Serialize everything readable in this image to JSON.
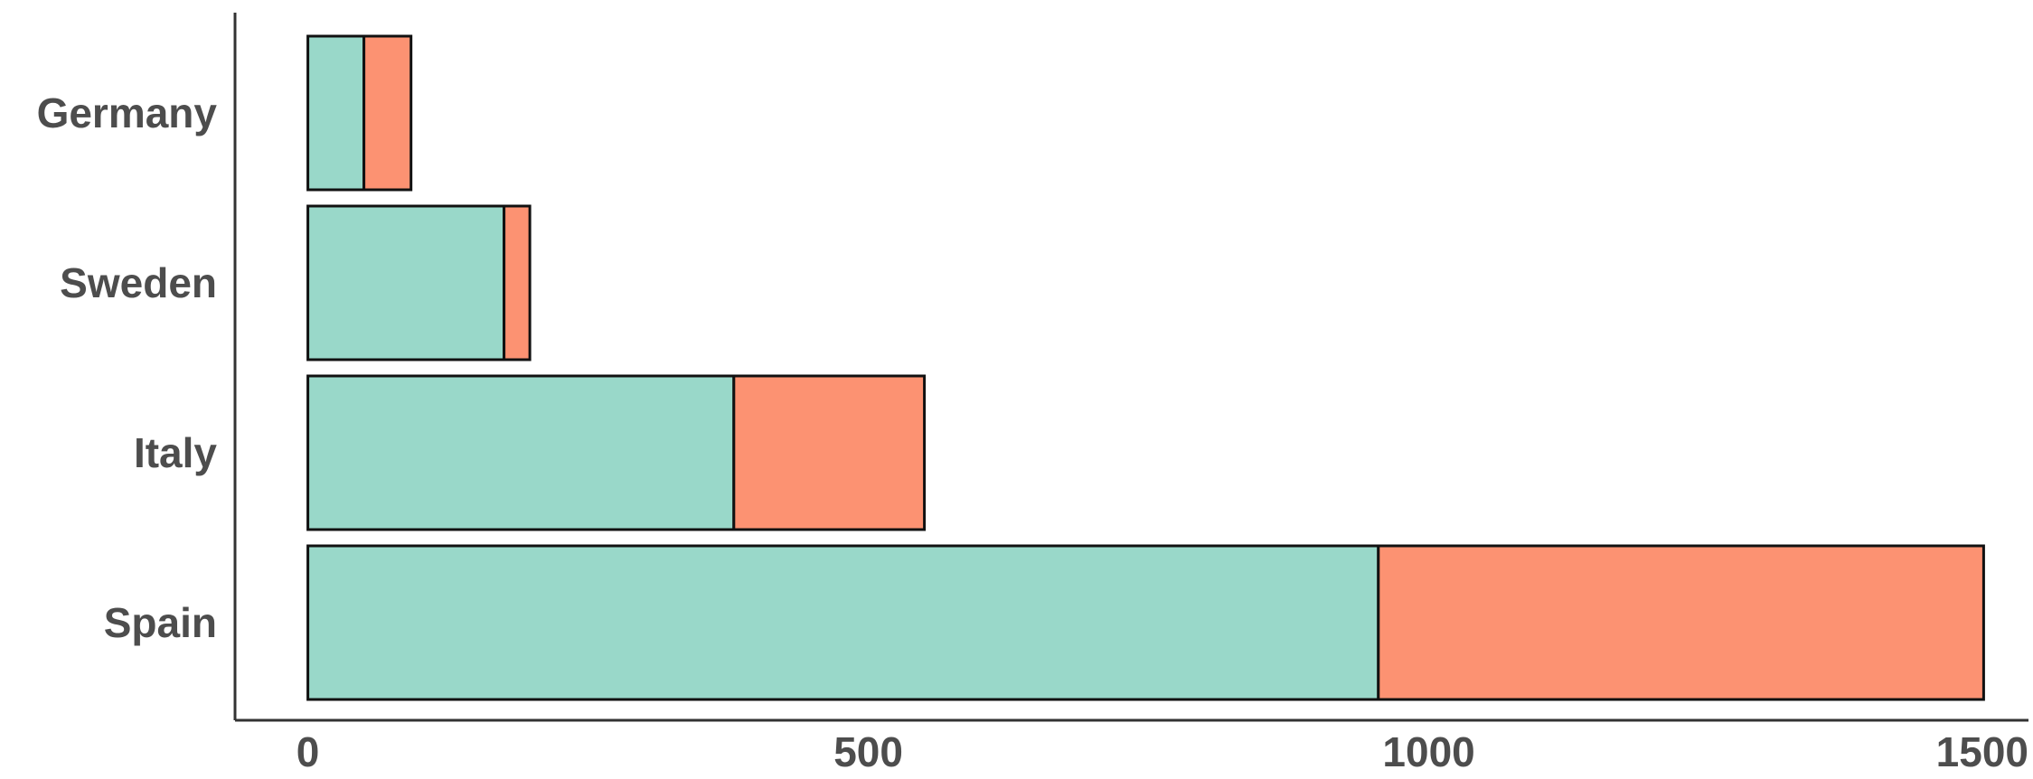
{
  "chart_data": {
    "type": "bar",
    "orientation": "horizontal",
    "stacked": true,
    "title": "",
    "xlabel": "",
    "ylabel": "",
    "categories": [
      "Germany",
      "Sweden",
      "Italy",
      "Spain"
    ],
    "series": [
      {
        "color": "#99d8c9",
        "values": [
          50,
          175,
          380,
          955
        ]
      },
      {
        "color": "#fc9272",
        "values": [
          42,
          23,
          170,
          540
        ]
      }
    ],
    "xlim": [
      -65,
      1535
    ],
    "x_ticks": [
      0,
      500,
      1000,
      1500
    ],
    "x_tick_labels": [
      "0",
      "500",
      "1000",
      "1500"
    ],
    "grid": false,
    "legend": "none"
  }
}
